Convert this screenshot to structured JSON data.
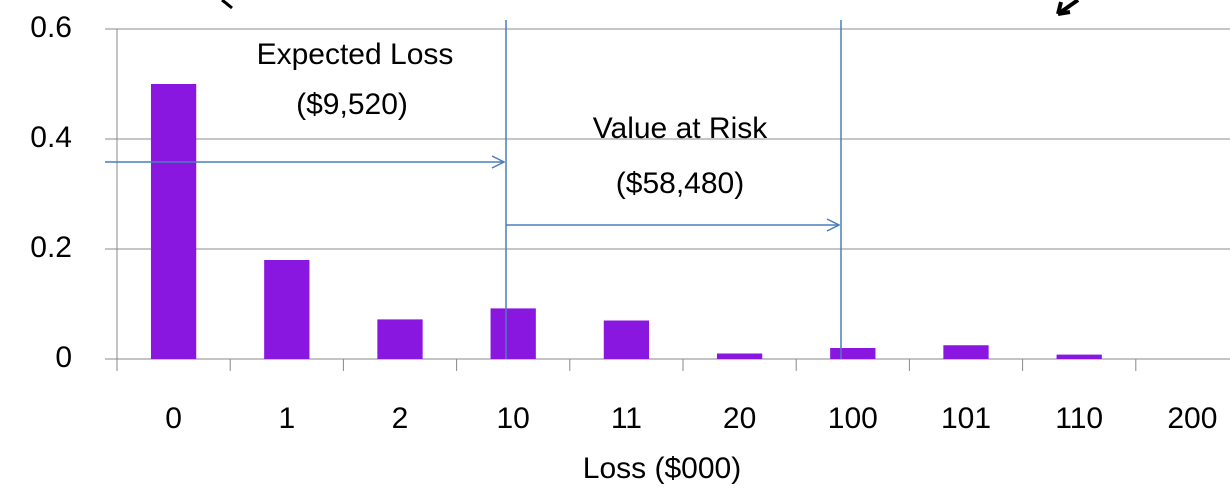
{
  "chart_data": {
    "type": "bar",
    "categories": [
      "0",
      "1",
      "2",
      "10",
      "11",
      "20",
      "100",
      "101",
      "110",
      "200"
    ],
    "values": [
      0.5,
      0.18,
      0.072,
      0.092,
      0.07,
      0.01,
      0.02,
      0.025,
      0.008,
      0
    ],
    "color": "#8a17e0",
    "xlabel": "Loss ($000)",
    "ylim": [
      0,
      0.6
    ],
    "yticks": [
      0,
      0.2,
      0.4,
      0.6
    ],
    "grid": true,
    "annotations": [
      "Expected Loss",
      "($9,520)",
      "Value at Risk",
      "($58,480)"
    ]
  }
}
